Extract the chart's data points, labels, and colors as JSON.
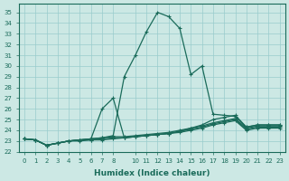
{
  "xlabel": "Humidex (Indice chaleur)",
  "bg_color": "#cce8e4",
  "grid_color": "#99cccc",
  "line_color": "#1a6b5a",
  "xlim": [
    -0.5,
    23.5
  ],
  "ylim": [
    22,
    35.8
  ],
  "yticks": [
    22,
    23,
    24,
    25,
    26,
    27,
    28,
    29,
    30,
    31,
    32,
    33,
    34,
    35
  ],
  "xticks": [
    0,
    1,
    2,
    3,
    4,
    5,
    6,
    7,
    8,
    10,
    11,
    12,
    13,
    14,
    15,
    16,
    17,
    18,
    19,
    20,
    21,
    22,
    23
  ],
  "lines": [
    {
      "x": [
        0,
        1,
        2,
        3,
        4,
        5,
        6,
        7,
        8,
        9,
        10,
        11,
        12,
        13,
        14,
        15,
        16,
        17,
        18,
        19,
        20,
        21,
        22,
        23
      ],
      "y": [
        23.2,
        23.1,
        22.6,
        22.8,
        23.0,
        23.1,
        23.2,
        23.3,
        23.5,
        29.0,
        31.0,
        33.2,
        35.0,
        34.6,
        33.5,
        29.2,
        30.0,
        25.5,
        25.4,
        25.3,
        24.3,
        24.5,
        24.5,
        24.5
      ]
    },
    {
      "x": [
        0,
        1,
        2,
        3,
        4,
        5,
        6,
        7,
        8,
        9,
        10,
        11,
        12,
        13,
        14,
        15,
        16,
        17,
        18,
        19,
        20,
        21,
        22,
        23
      ],
      "y": [
        23.2,
        23.1,
        22.6,
        22.8,
        23.0,
        23.1,
        23.2,
        26.0,
        27.0,
        23.3,
        23.4,
        23.5,
        23.6,
        23.7,
        23.9,
        24.2,
        24.5,
        25.0,
        25.2,
        25.4,
        24.3,
        24.5,
        24.5,
        24.5
      ]
    },
    {
      "x": [
        0,
        1,
        2,
        3,
        4,
        5,
        6,
        7,
        8,
        9,
        10,
        11,
        12,
        13,
        14,
        15,
        16,
        17,
        18,
        19,
        20,
        21,
        22,
        23
      ],
      "y": [
        23.2,
        23.1,
        22.6,
        22.8,
        23.0,
        23.1,
        23.2,
        23.3,
        23.4,
        23.4,
        23.5,
        23.6,
        23.7,
        23.8,
        24.0,
        24.2,
        24.4,
        24.7,
        24.9,
        25.1,
        24.2,
        24.4,
        24.4,
        24.4
      ]
    },
    {
      "x": [
        0,
        1,
        2,
        3,
        4,
        5,
        6,
        7,
        8,
        9,
        10,
        11,
        12,
        13,
        14,
        15,
        16,
        17,
        18,
        19,
        20,
        21,
        22,
        23
      ],
      "y": [
        23.2,
        23.1,
        22.6,
        22.8,
        23.0,
        23.1,
        23.1,
        23.2,
        23.3,
        23.3,
        23.4,
        23.5,
        23.6,
        23.7,
        23.9,
        24.1,
        24.3,
        24.6,
        24.8,
        25.0,
        24.1,
        24.3,
        24.3,
        24.3
      ]
    },
    {
      "x": [
        0,
        1,
        2,
        3,
        4,
        5,
        6,
        7,
        8,
        9,
        10,
        11,
        12,
        13,
        14,
        15,
        16,
        17,
        18,
        19,
        20,
        21,
        22,
        23
      ],
      "y": [
        23.2,
        23.1,
        22.6,
        22.8,
        23.0,
        23.0,
        23.1,
        23.1,
        23.2,
        23.3,
        23.4,
        23.5,
        23.6,
        23.7,
        23.8,
        24.0,
        24.2,
        24.5,
        24.7,
        24.9,
        24.0,
        24.2,
        24.2,
        24.2
      ]
    }
  ]
}
